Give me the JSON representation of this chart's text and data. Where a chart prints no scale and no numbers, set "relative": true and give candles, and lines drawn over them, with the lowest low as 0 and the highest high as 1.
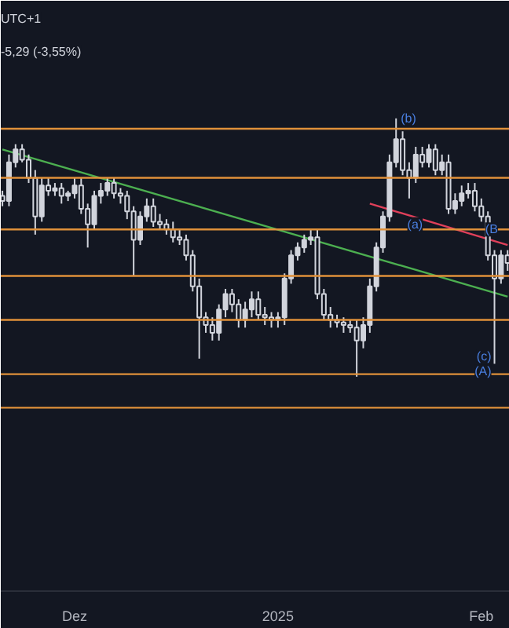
{
  "chart_data": {
    "type": "candlestick",
    "relative": true,
    "color": "#d1d4dc",
    "annotations": [
      "UTC+1",
      "-5,29 (-3,55%)",
      {
        "text": "(b)",
        "x": "2025-01-19",
        "y": 1.0
      },
      {
        "text": "(a)",
        "x": "2025-01-20",
        "y": 0.59
      },
      {
        "text": "(B",
        "x": "2025-02-04",
        "y": 0.57
      },
      {
        "text": "(c)",
        "x": "2025-02-03",
        "y": 0.08
      },
      {
        "text": "(A)",
        "x": "2025-02-03",
        "y": 0.02
      }
    ],
    "x": [
      "2024-11-20",
      "2024-11-21",
      "2024-11-22",
      "2024-11-23",
      "2024-11-24",
      "2024-11-25",
      "2024-11-26",
      "2024-11-27",
      "2024-11-28",
      "2024-11-29",
      "2024-11-30",
      "2024-12-01",
      "2024-12-02",
      "2024-12-03",
      "2024-12-04",
      "2024-12-05",
      "2024-12-06",
      "2024-12-07",
      "2024-12-08",
      "2024-12-09",
      "2024-12-10",
      "2024-12-11",
      "2024-12-12",
      "2024-12-13",
      "2024-12-14",
      "2024-12-15",
      "2024-12-16",
      "2024-12-17",
      "2024-12-18",
      "2024-12-19",
      "2024-12-20",
      "2024-12-21",
      "2024-12-22",
      "2024-12-23",
      "2024-12-24",
      "2024-12-25",
      "2024-12-26",
      "2024-12-27",
      "2024-12-28",
      "2024-12-29",
      "2024-12-30",
      "2024-12-31",
      "2025-01-01",
      "2025-01-02",
      "2025-01-03",
      "2025-01-04",
      "2025-01-05",
      "2025-01-06",
      "2025-01-07",
      "2025-01-08",
      "2025-01-09",
      "2025-01-10",
      "2025-01-11",
      "2025-01-12",
      "2025-01-13",
      "2025-01-14",
      "2025-01-15",
      "2025-01-16",
      "2025-01-17",
      "2025-01-18",
      "2025-01-19",
      "2025-01-20",
      "2025-01-21",
      "2025-01-22",
      "2025-01-23",
      "2025-01-24",
      "2025-01-25",
      "2025-01-26",
      "2025-01-27",
      "2025-01-28",
      "2025-01-29",
      "2025-01-30",
      "2025-01-31",
      "2025-02-01",
      "2025-02-02",
      "2025-02-03",
      "2025-02-04",
      "2025-02-05"
    ],
    "ohlc": [
      [
        0.7,
        0.72,
        0.66,
        0.68
      ],
      [
        0.68,
        0.86,
        0.66,
        0.83
      ],
      [
        0.83,
        0.9,
        0.81,
        0.88
      ],
      [
        0.88,
        0.9,
        0.83,
        0.84
      ],
      [
        0.84,
        0.86,
        0.75,
        0.77
      ],
      [
        0.77,
        0.8,
        0.55,
        0.62
      ],
      [
        0.62,
        0.77,
        0.6,
        0.74
      ],
      [
        0.74,
        0.77,
        0.7,
        0.72
      ],
      [
        0.72,
        0.75,
        0.7,
        0.73
      ],
      [
        0.73,
        0.75,
        0.67,
        0.7
      ],
      [
        0.7,
        0.72,
        0.68,
        0.71
      ],
      [
        0.71,
        0.77,
        0.69,
        0.74
      ],
      [
        0.74,
        0.77,
        0.63,
        0.65
      ],
      [
        0.65,
        0.67,
        0.5,
        0.59
      ],
      [
        0.59,
        0.72,
        0.57,
        0.7
      ],
      [
        0.7,
        0.75,
        0.67,
        0.72
      ],
      [
        0.72,
        0.77,
        0.7,
        0.75
      ],
      [
        0.75,
        0.77,
        0.69,
        0.71
      ],
      [
        0.71,
        0.73,
        0.67,
        0.7
      ],
      [
        0.7,
        0.72,
        0.61,
        0.64
      ],
      [
        0.64,
        0.66,
        0.39,
        0.53
      ],
      [
        0.53,
        0.64,
        0.51,
        0.62
      ],
      [
        0.62,
        0.69,
        0.6,
        0.66
      ],
      [
        0.66,
        0.69,
        0.58,
        0.6
      ],
      [
        0.6,
        0.63,
        0.57,
        0.59
      ],
      [
        0.59,
        0.61,
        0.55,
        0.57
      ],
      [
        0.57,
        0.6,
        0.52,
        0.54
      ],
      [
        0.54,
        0.57,
        0.51,
        0.53
      ],
      [
        0.53,
        0.55,
        0.45,
        0.47
      ],
      [
        0.47,
        0.49,
        0.33,
        0.35
      ],
      [
        0.35,
        0.38,
        0.07,
        0.23
      ],
      [
        0.23,
        0.25,
        0.17,
        0.2
      ],
      [
        0.2,
        0.23,
        0.14,
        0.17
      ],
      [
        0.17,
        0.28,
        0.14,
        0.26
      ],
      [
        0.26,
        0.34,
        0.23,
        0.32
      ],
      [
        0.32,
        0.34,
        0.25,
        0.28
      ],
      [
        0.28,
        0.3,
        0.19,
        0.22
      ],
      [
        0.22,
        0.29,
        0.19,
        0.26
      ],
      [
        0.26,
        0.33,
        0.23,
        0.3
      ],
      [
        0.3,
        0.33,
        0.22,
        0.24
      ],
      [
        0.24,
        0.27,
        0.2,
        0.23
      ],
      [
        0.23,
        0.25,
        0.19,
        0.22
      ],
      [
        0.22,
        0.25,
        0.19,
        0.23
      ],
      [
        0.23,
        0.4,
        0.2,
        0.38
      ],
      [
        0.38,
        0.49,
        0.36,
        0.47
      ],
      [
        0.47,
        0.52,
        0.45,
        0.5
      ],
      [
        0.5,
        0.55,
        0.48,
        0.53
      ],
      [
        0.53,
        0.57,
        0.51,
        0.54
      ],
      [
        0.54,
        0.57,
        0.3,
        0.32
      ],
      [
        0.32,
        0.34,
        0.22,
        0.24
      ],
      [
        0.24,
        0.27,
        0.19,
        0.22
      ],
      [
        0.22,
        0.24,
        0.19,
        0.21
      ],
      [
        0.21,
        0.23,
        0.17,
        0.2
      ],
      [
        0.2,
        0.22,
        0.17,
        0.19
      ],
      [
        0.19,
        0.22,
        0.0,
        0.14
      ],
      [
        0.14,
        0.23,
        0.11,
        0.2
      ],
      [
        0.2,
        0.38,
        0.17,
        0.35
      ],
      [
        0.35,
        0.52,
        0.33,
        0.5
      ],
      [
        0.5,
        0.64,
        0.48,
        0.62
      ],
      [
        0.62,
        0.86,
        0.6,
        0.83
      ],
      [
        0.83,
        1.0,
        0.81,
        0.92
      ],
      [
        0.92,
        0.95,
        0.78,
        0.8
      ],
      [
        0.8,
        0.83,
        0.69,
        0.77
      ],
      [
        0.77,
        0.89,
        0.75,
        0.86
      ],
      [
        0.86,
        0.89,
        0.81,
        0.83
      ],
      [
        0.83,
        0.9,
        0.81,
        0.88
      ],
      [
        0.88,
        0.9,
        0.78,
        0.8
      ],
      [
        0.8,
        0.86,
        0.78,
        0.83
      ],
      [
        0.83,
        0.86,
        0.63,
        0.65
      ],
      [
        0.65,
        0.71,
        0.63,
        0.68
      ],
      [
        0.68,
        0.74,
        0.66,
        0.71
      ],
      [
        0.71,
        0.75,
        0.69,
        0.72
      ],
      [
        0.72,
        0.75,
        0.64,
        0.66
      ],
      [
        0.66,
        0.69,
        0.6,
        0.62
      ],
      [
        0.62,
        0.64,
        0.45,
        0.47
      ],
      [
        0.47,
        0.49,
        0.05,
        0.38
      ],
      [
        0.38,
        0.49,
        0.36,
        0.47
      ],
      [
        0.47,
        0.49,
        0.41,
        0.44
      ]
    ],
    "series": [
      {
        "type": "line",
        "color": "#4caf50",
        "x": [
          "2024-11-20",
          "2025-02-05"
        ],
        "values": [
          0.88,
          0.31
        ]
      },
      {
        "type": "line",
        "color": "#e0405a",
        "x": [
          "2025-01-15",
          "2025-02-05"
        ],
        "values": [
          0.67,
          0.51
        ]
      }
    ],
    "ref_lines": [
      {
        "axis": "y",
        "value": 0.96,
        "color": "#e0913a"
      },
      {
        "axis": "y",
        "value": 0.77,
        "color": "#e0913a"
      },
      {
        "axis": "y",
        "value": 0.57,
        "color": "#e0913a"
      },
      {
        "axis": "y",
        "value": 0.39,
        "color": "#e0913a"
      },
      {
        "axis": "y",
        "value": 0.22,
        "color": "#e0913a"
      },
      {
        "axis": "y",
        "value": 0.01,
        "color": "#e0913a"
      },
      {
        "axis": "y",
        "value": -0.12,
        "color": "#e0913a"
      }
    ],
    "xlim": [
      "2024-11-19T18:00",
      "2025-02-05T08:00"
    ],
    "xticks": [
      {
        "value": "2024-12-01",
        "label": "Dez"
      },
      {
        "value": "2025-01-01",
        "label": "2025"
      },
      {
        "value": "2025-02-01",
        "label": "Feb"
      }
    ],
    "grid": false
  }
}
